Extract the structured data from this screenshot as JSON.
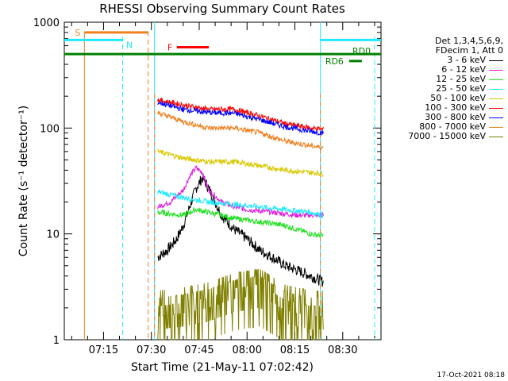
{
  "title": "RHESSI Observing Summary Count Rates",
  "timestamp": "17-Oct-2021 08:18",
  "legend": {
    "header_line1": "Det 1,3,4,5,6,9,",
    "header_line2": "FDecim 1, Att 0",
    "entries": [
      {
        "label": "3 - 6 keV",
        "color": "#000000"
      },
      {
        "label": "6 - 12 keV",
        "color": "#e020e0"
      },
      {
        "label": "12 - 25 keV",
        "color": "#20e020"
      },
      {
        "label": "25 - 50 keV",
        "color": "#20e8ff"
      },
      {
        "label": "50 - 100 keV",
        "color": "#d8c800"
      },
      {
        "label": "100 - 300 keV",
        "color": "#ff0000"
      },
      {
        "label": "300 - 800 keV",
        "color": "#0000ff"
      },
      {
        "label": "800 - 7000 keV",
        "color": "#f08020"
      },
      {
        "label": "7000 - 15000 keV",
        "color": "#808000"
      }
    ]
  },
  "chart_data": {
    "type": "line",
    "title": "RHESSI Observing Summary Count Rates",
    "xlabel": "Start Time (21-May-11 07:02:42)",
    "ylabel": "Count Rate (s⁻¹ detector⁻¹)",
    "y_scale": "log",
    "ylim": [
      1,
      1000
    ],
    "xlim": [
      "07:02:42",
      "08:42:00"
    ],
    "x_ticks": [
      "07:15",
      "07:30",
      "07:45",
      "08:00",
      "08:15",
      "08:30"
    ],
    "y_ticks": [
      "1",
      "10",
      "100",
      "1000"
    ],
    "grid": false,
    "legend_position": "right",
    "spacecraft_day": [
      "07:31",
      "08:23"
    ],
    "series": [
      {
        "name": "3 - 6 keV",
        "color": "#000000",
        "x": [
          "07:32",
          "07:35",
          "07:38",
          "07:40",
          "07:42",
          "07:44",
          "07:46",
          "07:48",
          "07:52",
          "07:56",
          "08:00",
          "08:04",
          "08:08",
          "08:12",
          "08:16",
          "08:20",
          "08:24"
        ],
        "values": [
          6,
          7,
          9,
          12,
          18,
          27,
          34,
          27,
          15,
          11,
          9,
          7,
          6,
          5,
          4.5,
          4,
          3.5
        ]
      },
      {
        "name": "6 - 12 keV",
        "color": "#e020e0",
        "x": [
          "07:32",
          "07:36",
          "07:40",
          "07:42",
          "07:44",
          "07:46",
          "07:48",
          "07:52",
          "07:56",
          "08:00",
          "08:08",
          "08:16",
          "08:24"
        ],
        "values": [
          18,
          20,
          26,
          35,
          42,
          38,
          26,
          20,
          18,
          17,
          16,
          15,
          15
        ]
      },
      {
        "name": "12 - 25 keV",
        "color": "#20e020",
        "x": [
          "07:32",
          "07:40",
          "07:44",
          "07:48",
          "07:56",
          "08:04",
          "08:12",
          "08:20",
          "08:24"
        ],
        "values": [
          16,
          15,
          17,
          16,
          14,
          13,
          12,
          10,
          9.5
        ]
      },
      {
        "name": "25 - 50 keV",
        "color": "#20e8ff",
        "x": [
          "07:32",
          "07:40",
          "07:48",
          "07:56",
          "08:04",
          "08:12",
          "08:20",
          "08:24"
        ],
        "values": [
          25,
          22,
          20,
          19,
          18,
          17,
          16,
          15
        ]
      },
      {
        "name": "50 - 100 keV",
        "color": "#d8c800",
        "x": [
          "07:32",
          "07:40",
          "07:48",
          "07:56",
          "08:04",
          "08:12",
          "08:20",
          "08:24"
        ],
        "values": [
          60,
          52,
          48,
          48,
          44,
          40,
          38,
          37
        ]
      },
      {
        "name": "100 - 300 keV",
        "color": "#ff0000",
        "x": [
          "07:32",
          "07:40",
          "07:48",
          "07:56",
          "08:04",
          "08:12",
          "08:20",
          "08:24"
        ],
        "values": [
          185,
          165,
          150,
          150,
          130,
          110,
          100,
          97
        ]
      },
      {
        "name": "300 - 800 keV",
        "color": "#0000ff",
        "x": [
          "07:32",
          "07:40",
          "07:48",
          "07:56",
          "08:04",
          "08:12",
          "08:20",
          "08:24"
        ],
        "values": [
          175,
          150,
          140,
          138,
          120,
          103,
          93,
          90
        ]
      },
      {
        "name": "800 - 7000 keV",
        "color": "#f08020",
        "x": [
          "07:32",
          "07:40",
          "07:48",
          "07:56",
          "08:04",
          "08:12",
          "08:20",
          "08:24"
        ],
        "values": [
          140,
          115,
          100,
          100,
          90,
          75,
          68,
          65
        ]
      },
      {
        "name": "7000 - 15000 keV",
        "color": "#808000",
        "x": [
          "07:32",
          "07:40",
          "07:48",
          "07:56",
          "08:04",
          "08:12",
          "08:20",
          "08:24"
        ],
        "values": [
          1.5,
          1.6,
          1.8,
          2.2,
          2.4,
          1.7,
          1.5,
          1.5
        ]
      }
    ],
    "annotations": [
      {
        "label": "S",
        "color": "#f08020",
        "start": "07:09",
        "end": "07:29",
        "level": 800
      },
      {
        "label": "N",
        "color": "#20e8ff",
        "start": "07:02:42",
        "end": "07:21",
        "level": 680
      },
      {
        "label": "F",
        "color": "#ff0000",
        "start": "07:38",
        "end": "07:48",
        "level": 580
      },
      {
        "label": "RD0",
        "color": "#008000",
        "start": "07:02:42",
        "end": "08:42",
        "level": 500
      },
      {
        "label": "RD6",
        "color": "#008000",
        "start": "08:32",
        "end": "08:36",
        "level": 430
      },
      {
        "label": "",
        "color": "#20e8ff",
        "start": "08:23",
        "end": "08:42",
        "level": 680
      }
    ]
  }
}
